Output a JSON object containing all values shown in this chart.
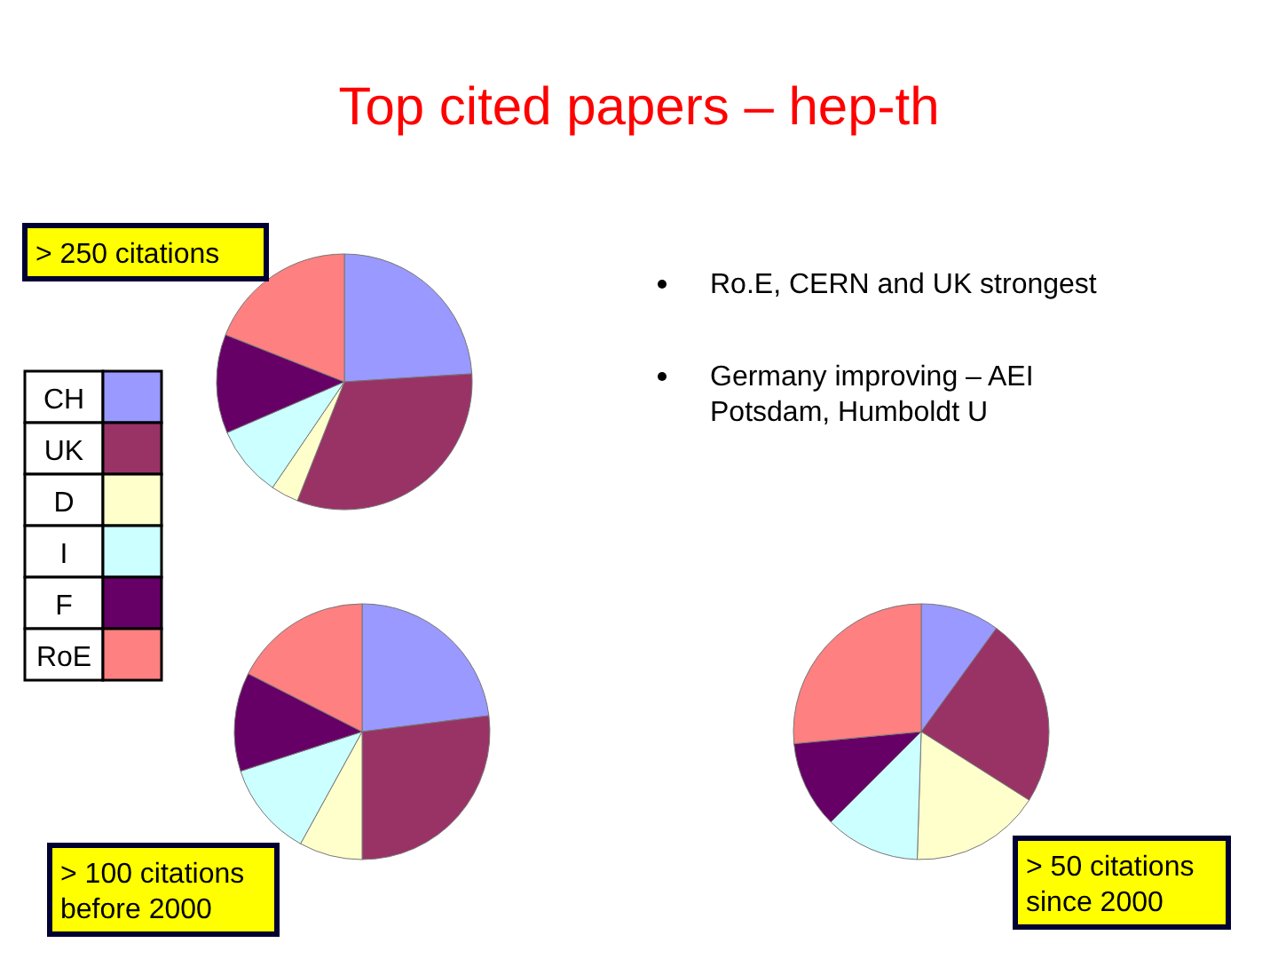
{
  "chart_data": [
    {
      "type": "pie",
      "title": "Top cited papers – hep-th",
      "subtitle": "> 250 citations",
      "categories": [
        "CH",
        "UK",
        "D",
        "I",
        "F",
        "RoE"
      ],
      "values": [
        24,
        32,
        3.5,
        9,
        12.5,
        19
      ],
      "colors": [
        "#9999ff",
        "#993366",
        "#ffffcc",
        "#ccffff",
        "#660066",
        "#ff8080"
      ],
      "legend": "left",
      "annotations": [
        "Ro.E, CERN and UK strongest",
        "Germany improving – AEI Potsdam, Humboldt U"
      ]
    },
    {
      "type": "pie",
      "subtitle": "> 100 citations before 2000",
      "categories": [
        null,
        null,
        null,
        null,
        null,
        null
      ],
      "values": [
        23,
        27,
        8,
        12,
        12.5,
        17.5
      ],
      "colors": [
        "#9999ff",
        "#993366",
        "#ffffcc",
        "#ccffff",
        "#660066",
        "#ff8080"
      ]
    },
    {
      "type": "pie",
      "subtitle": "> 50 citations since 2000",
      "categories": [
        null,
        null,
        null,
        null,
        null,
        null
      ],
      "values": [
        10,
        24,
        16.5,
        12,
        11,
        26.5
      ],
      "colors": [
        "#9999ff",
        "#993366",
        "#ffffcc",
        "#ccffff",
        "#660066",
        "#ff8080"
      ]
    }
  ]
}
